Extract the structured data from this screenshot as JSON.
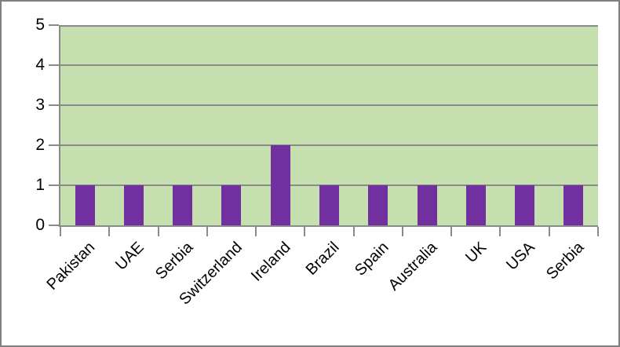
{
  "chart_data": {
    "type": "bar",
    "title": "",
    "xlabel": "",
    "ylabel": "",
    "categories": [
      "Pakistan",
      "UAE",
      "Serbia",
      "Switzerland",
      "Ireland",
      "Brazil",
      "Spain",
      "Australia",
      "UK",
      "USA",
      "Serbia"
    ],
    "values": [
      1,
      1,
      1,
      1,
      2,
      1,
      1,
      1,
      1,
      1,
      1
    ],
    "ylim": [
      0,
      5
    ],
    "ytick_step": 1,
    "ytick_labels": [
      "0",
      "1",
      "2",
      "3",
      "4",
      "5"
    ],
    "grid": "horizontal-major",
    "legend": "none",
    "colors": {
      "bar": "#7030A0",
      "plot_background": "#C6DFAF",
      "gridline": "#8A8A8A",
      "axis": "#8A8A8A",
      "tick": "#8A8A8A",
      "frame_border": "#808080",
      "text": "#000000",
      "background": "#FFFFFF"
    }
  }
}
